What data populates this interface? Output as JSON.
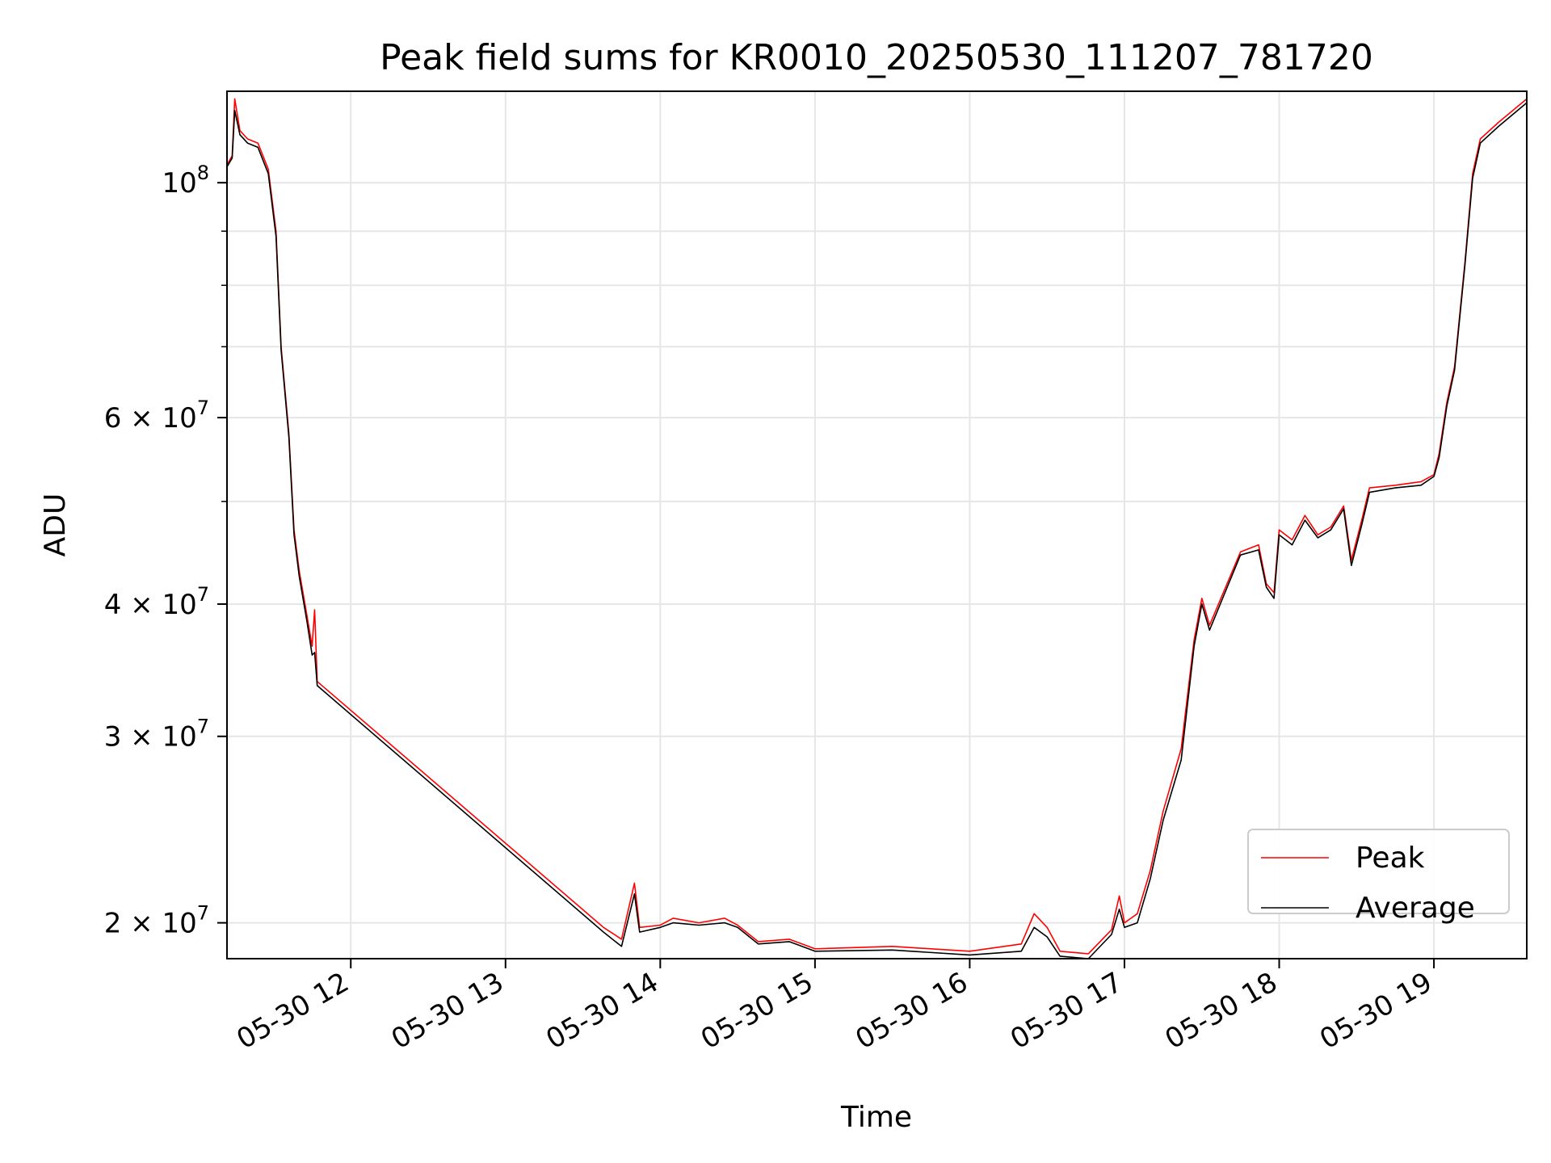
{
  "chart_data": {
    "type": "line",
    "title": "Peak field sums for KR0010_20250530_111207_781720",
    "xlabel": "Time",
    "ylabel": "ADU",
    "yscale": "log",
    "xlim": [
      "2025-05-30 11:12",
      "2025-05-30 19:36"
    ],
    "ylim": [
      18500000,
      122000000
    ],
    "grid": true,
    "legend_position": "lower-right",
    "x_ticks": [
      {
        "t": "2025-05-30 12:00",
        "label": "05-30 12"
      },
      {
        "t": "2025-05-30 13:00",
        "label": "05-30 13"
      },
      {
        "t": "2025-05-30 14:00",
        "label": "05-30 14"
      },
      {
        "t": "2025-05-30 15:00",
        "label": "05-30 15"
      },
      {
        "t": "2025-05-30 16:00",
        "label": "05-30 16"
      },
      {
        "t": "2025-05-30 17:00",
        "label": "05-30 17"
      },
      {
        "t": "2025-05-30 18:00",
        "label": "05-30 18"
      },
      {
        "t": "2025-05-30 19:00",
        "label": "05-30 19"
      }
    ],
    "y_ticks": [
      {
        "value": 20000000,
        "base": "2 × 10",
        "exp": "7"
      },
      {
        "value": 30000000,
        "base": "3 × 10",
        "exp": "7"
      },
      {
        "value": 40000000,
        "base": "4 × 10",
        "exp": "7"
      },
      {
        "value": 60000000,
        "base": "6 × 10",
        "exp": "7"
      },
      {
        "value": 100000000,
        "base": "10",
        "exp": "8"
      }
    ],
    "y_minor_ticks": [
      50000000,
      70000000,
      80000000,
      90000000
    ],
    "series": [
      {
        "name": "Peak",
        "color": "#ff0000",
        "points": [
          [
            "2025-05-30 11:12",
            104000000
          ],
          [
            "2025-05-30 11:14",
            106000000
          ],
          [
            "2025-05-30 11:15",
            120000000
          ],
          [
            "2025-05-30 11:17",
            112000000
          ],
          [
            "2025-05-30 11:20",
            110000000
          ],
          [
            "2025-05-30 11:24",
            109000000
          ],
          [
            "2025-05-30 11:28",
            103000000
          ],
          [
            "2025-05-30 11:31",
            90000000
          ],
          [
            "2025-05-30 11:33",
            70000000
          ],
          [
            "2025-05-30 11:36",
            58000000
          ],
          [
            "2025-05-30 11:38",
            47000000
          ],
          [
            "2025-05-30 11:40",
            43000000
          ],
          [
            "2025-05-30 11:43",
            39000000
          ],
          [
            "2025-05-30 11:45",
            36500000
          ],
          [
            "2025-05-30 11:46",
            39500000
          ],
          [
            "2025-05-30 11:47",
            33800000
          ],
          [
            "2025-05-30 13:38",
            19800000
          ],
          [
            "2025-05-30 13:45",
            19300000
          ],
          [
            "2025-05-30 13:50",
            21800000
          ],
          [
            "2025-05-30 13:52",
            19800000
          ],
          [
            "2025-05-30 14:00",
            19900000
          ],
          [
            "2025-05-30 14:05",
            20200000
          ],
          [
            "2025-05-30 14:15",
            20000000
          ],
          [
            "2025-05-30 14:25",
            20200000
          ],
          [
            "2025-05-30 14:30",
            19900000
          ],
          [
            "2025-05-30 14:38",
            19200000
          ],
          [
            "2025-05-30 14:50",
            19300000
          ],
          [
            "2025-05-30 15:00",
            18900000
          ],
          [
            "2025-05-30 15:30",
            19000000
          ],
          [
            "2025-05-30 16:00",
            18800000
          ],
          [
            "2025-05-30 16:20",
            19100000
          ],
          [
            "2025-05-30 16:25",
            20400000
          ],
          [
            "2025-05-30 16:30",
            19800000
          ],
          [
            "2025-05-30 16:35",
            18800000
          ],
          [
            "2025-05-30 16:46",
            18700000
          ],
          [
            "2025-05-30 16:55",
            19700000
          ],
          [
            "2025-05-30 16:58",
            21200000
          ],
          [
            "2025-05-30 17:00",
            20000000
          ],
          [
            "2025-05-30 17:05",
            20400000
          ],
          [
            "2025-05-30 17:10",
            22400000
          ],
          [
            "2025-05-30 17:15",
            25500000
          ],
          [
            "2025-05-30 17:22",
            29200000
          ],
          [
            "2025-05-30 17:27",
            37000000
          ],
          [
            "2025-05-30 17:30",
            40500000
          ],
          [
            "2025-05-30 17:33",
            38200000
          ],
          [
            "2025-05-30 17:45",
            44800000
          ],
          [
            "2025-05-30 17:52",
            45500000
          ],
          [
            "2025-05-30 17:55",
            41800000
          ],
          [
            "2025-05-30 17:58",
            41000000
          ],
          [
            "2025-05-30 18:00",
            47000000
          ],
          [
            "2025-05-30 18:05",
            46000000
          ],
          [
            "2025-05-30 18:10",
            48500000
          ],
          [
            "2025-05-30 18:15",
            46500000
          ],
          [
            "2025-05-30 18:20",
            47300000
          ],
          [
            "2025-05-30 18:25",
            49500000
          ],
          [
            "2025-05-30 18:28",
            44000000
          ],
          [
            "2025-05-30 18:32",
            48000000
          ],
          [
            "2025-05-30 18:35",
            51500000
          ],
          [
            "2025-05-30 18:45",
            51800000
          ],
          [
            "2025-05-30 18:55",
            52200000
          ],
          [
            "2025-05-30 19:00",
            53000000
          ],
          [
            "2025-05-30 19:02",
            55500000
          ],
          [
            "2025-05-30 19:05",
            62000000
          ],
          [
            "2025-05-30 19:08",
            67000000
          ],
          [
            "2025-05-30 19:12",
            84000000
          ],
          [
            "2025-05-30 19:15",
            102000000
          ],
          [
            "2025-05-30 19:18",
            110000000
          ],
          [
            "2025-05-30 19:25",
            114000000
          ],
          [
            "2025-05-30 19:36",
            120000000
          ]
        ]
      },
      {
        "name": "Average",
        "color": "#000000",
        "points": [
          [
            "2025-05-30 11:12",
            103500000
          ],
          [
            "2025-05-30 11:14",
            105500000
          ],
          [
            "2025-05-30 11:15",
            117000000
          ],
          [
            "2025-05-30 11:17",
            111000000
          ],
          [
            "2025-05-30 11:20",
            109000000
          ],
          [
            "2025-05-30 11:24",
            108000000
          ],
          [
            "2025-05-30 11:28",
            102000000
          ],
          [
            "2025-05-30 11:31",
            89000000
          ],
          [
            "2025-05-30 11:33",
            69500000
          ],
          [
            "2025-05-30 11:36",
            57500000
          ],
          [
            "2025-05-30 11:38",
            46500000
          ],
          [
            "2025-05-30 11:40",
            42500000
          ],
          [
            "2025-05-30 11:43",
            38500000
          ],
          [
            "2025-05-30 11:45",
            35800000
          ],
          [
            "2025-05-30 11:46",
            36000000
          ],
          [
            "2025-05-30 11:47",
            33500000
          ],
          [
            "2025-05-30 13:38",
            19600000
          ],
          [
            "2025-05-30 13:45",
            19000000
          ],
          [
            "2025-05-30 13:50",
            21300000
          ],
          [
            "2025-05-30 13:52",
            19600000
          ],
          [
            "2025-05-30 14:00",
            19800000
          ],
          [
            "2025-05-30 14:05",
            20000000
          ],
          [
            "2025-05-30 14:15",
            19900000
          ],
          [
            "2025-05-30 14:25",
            20000000
          ],
          [
            "2025-05-30 14:30",
            19800000
          ],
          [
            "2025-05-30 14:38",
            19100000
          ],
          [
            "2025-05-30 14:50",
            19200000
          ],
          [
            "2025-05-30 15:00",
            18800000
          ],
          [
            "2025-05-30 15:30",
            18850000
          ],
          [
            "2025-05-30 16:00",
            18650000
          ],
          [
            "2025-05-30 16:20",
            18800000
          ],
          [
            "2025-05-30 16:25",
            19800000
          ],
          [
            "2025-05-30 16:30",
            19400000
          ],
          [
            "2025-05-30 16:35",
            18600000
          ],
          [
            "2025-05-30 16:46",
            18500000
          ],
          [
            "2025-05-30 16:55",
            19500000
          ],
          [
            "2025-05-30 16:58",
            20600000
          ],
          [
            "2025-05-30 17:00",
            19800000
          ],
          [
            "2025-05-30 17:05",
            20000000
          ],
          [
            "2025-05-30 17:10",
            22000000
          ],
          [
            "2025-05-30 17:15",
            25000000
          ],
          [
            "2025-05-30 17:22",
            28500000
          ],
          [
            "2025-05-30 17:27",
            36500000
          ],
          [
            "2025-05-30 17:30",
            40000000
          ],
          [
            "2025-05-30 17:33",
            37800000
          ],
          [
            "2025-05-30 17:45",
            44500000
          ],
          [
            "2025-05-30 17:52",
            45000000
          ],
          [
            "2025-05-30 17:55",
            41500000
          ],
          [
            "2025-05-30 17:58",
            40500000
          ],
          [
            "2025-05-30 18:00",
            46500000
          ],
          [
            "2025-05-30 18:05",
            45500000
          ],
          [
            "2025-05-30 18:10",
            48000000
          ],
          [
            "2025-05-30 18:15",
            46200000
          ],
          [
            "2025-05-30 18:20",
            47000000
          ],
          [
            "2025-05-30 18:25",
            49200000
          ],
          [
            "2025-05-30 18:28",
            43500000
          ],
          [
            "2025-05-30 18:32",
            47500000
          ],
          [
            "2025-05-30 18:35",
            51000000
          ],
          [
            "2025-05-30 18:45",
            51500000
          ],
          [
            "2025-05-30 18:55",
            51800000
          ],
          [
            "2025-05-30 19:00",
            52800000
          ],
          [
            "2025-05-30 19:02",
            55000000
          ],
          [
            "2025-05-30 19:05",
            61500000
          ],
          [
            "2025-05-30 19:08",
            66500000
          ],
          [
            "2025-05-30 19:12",
            83500000
          ],
          [
            "2025-05-30 19:15",
            101000000
          ],
          [
            "2025-05-30 19:18",
            109000000
          ],
          [
            "2025-05-30 19:25",
            113000000
          ],
          [
            "2025-05-30 19:36",
            119000000
          ]
        ]
      }
    ]
  }
}
